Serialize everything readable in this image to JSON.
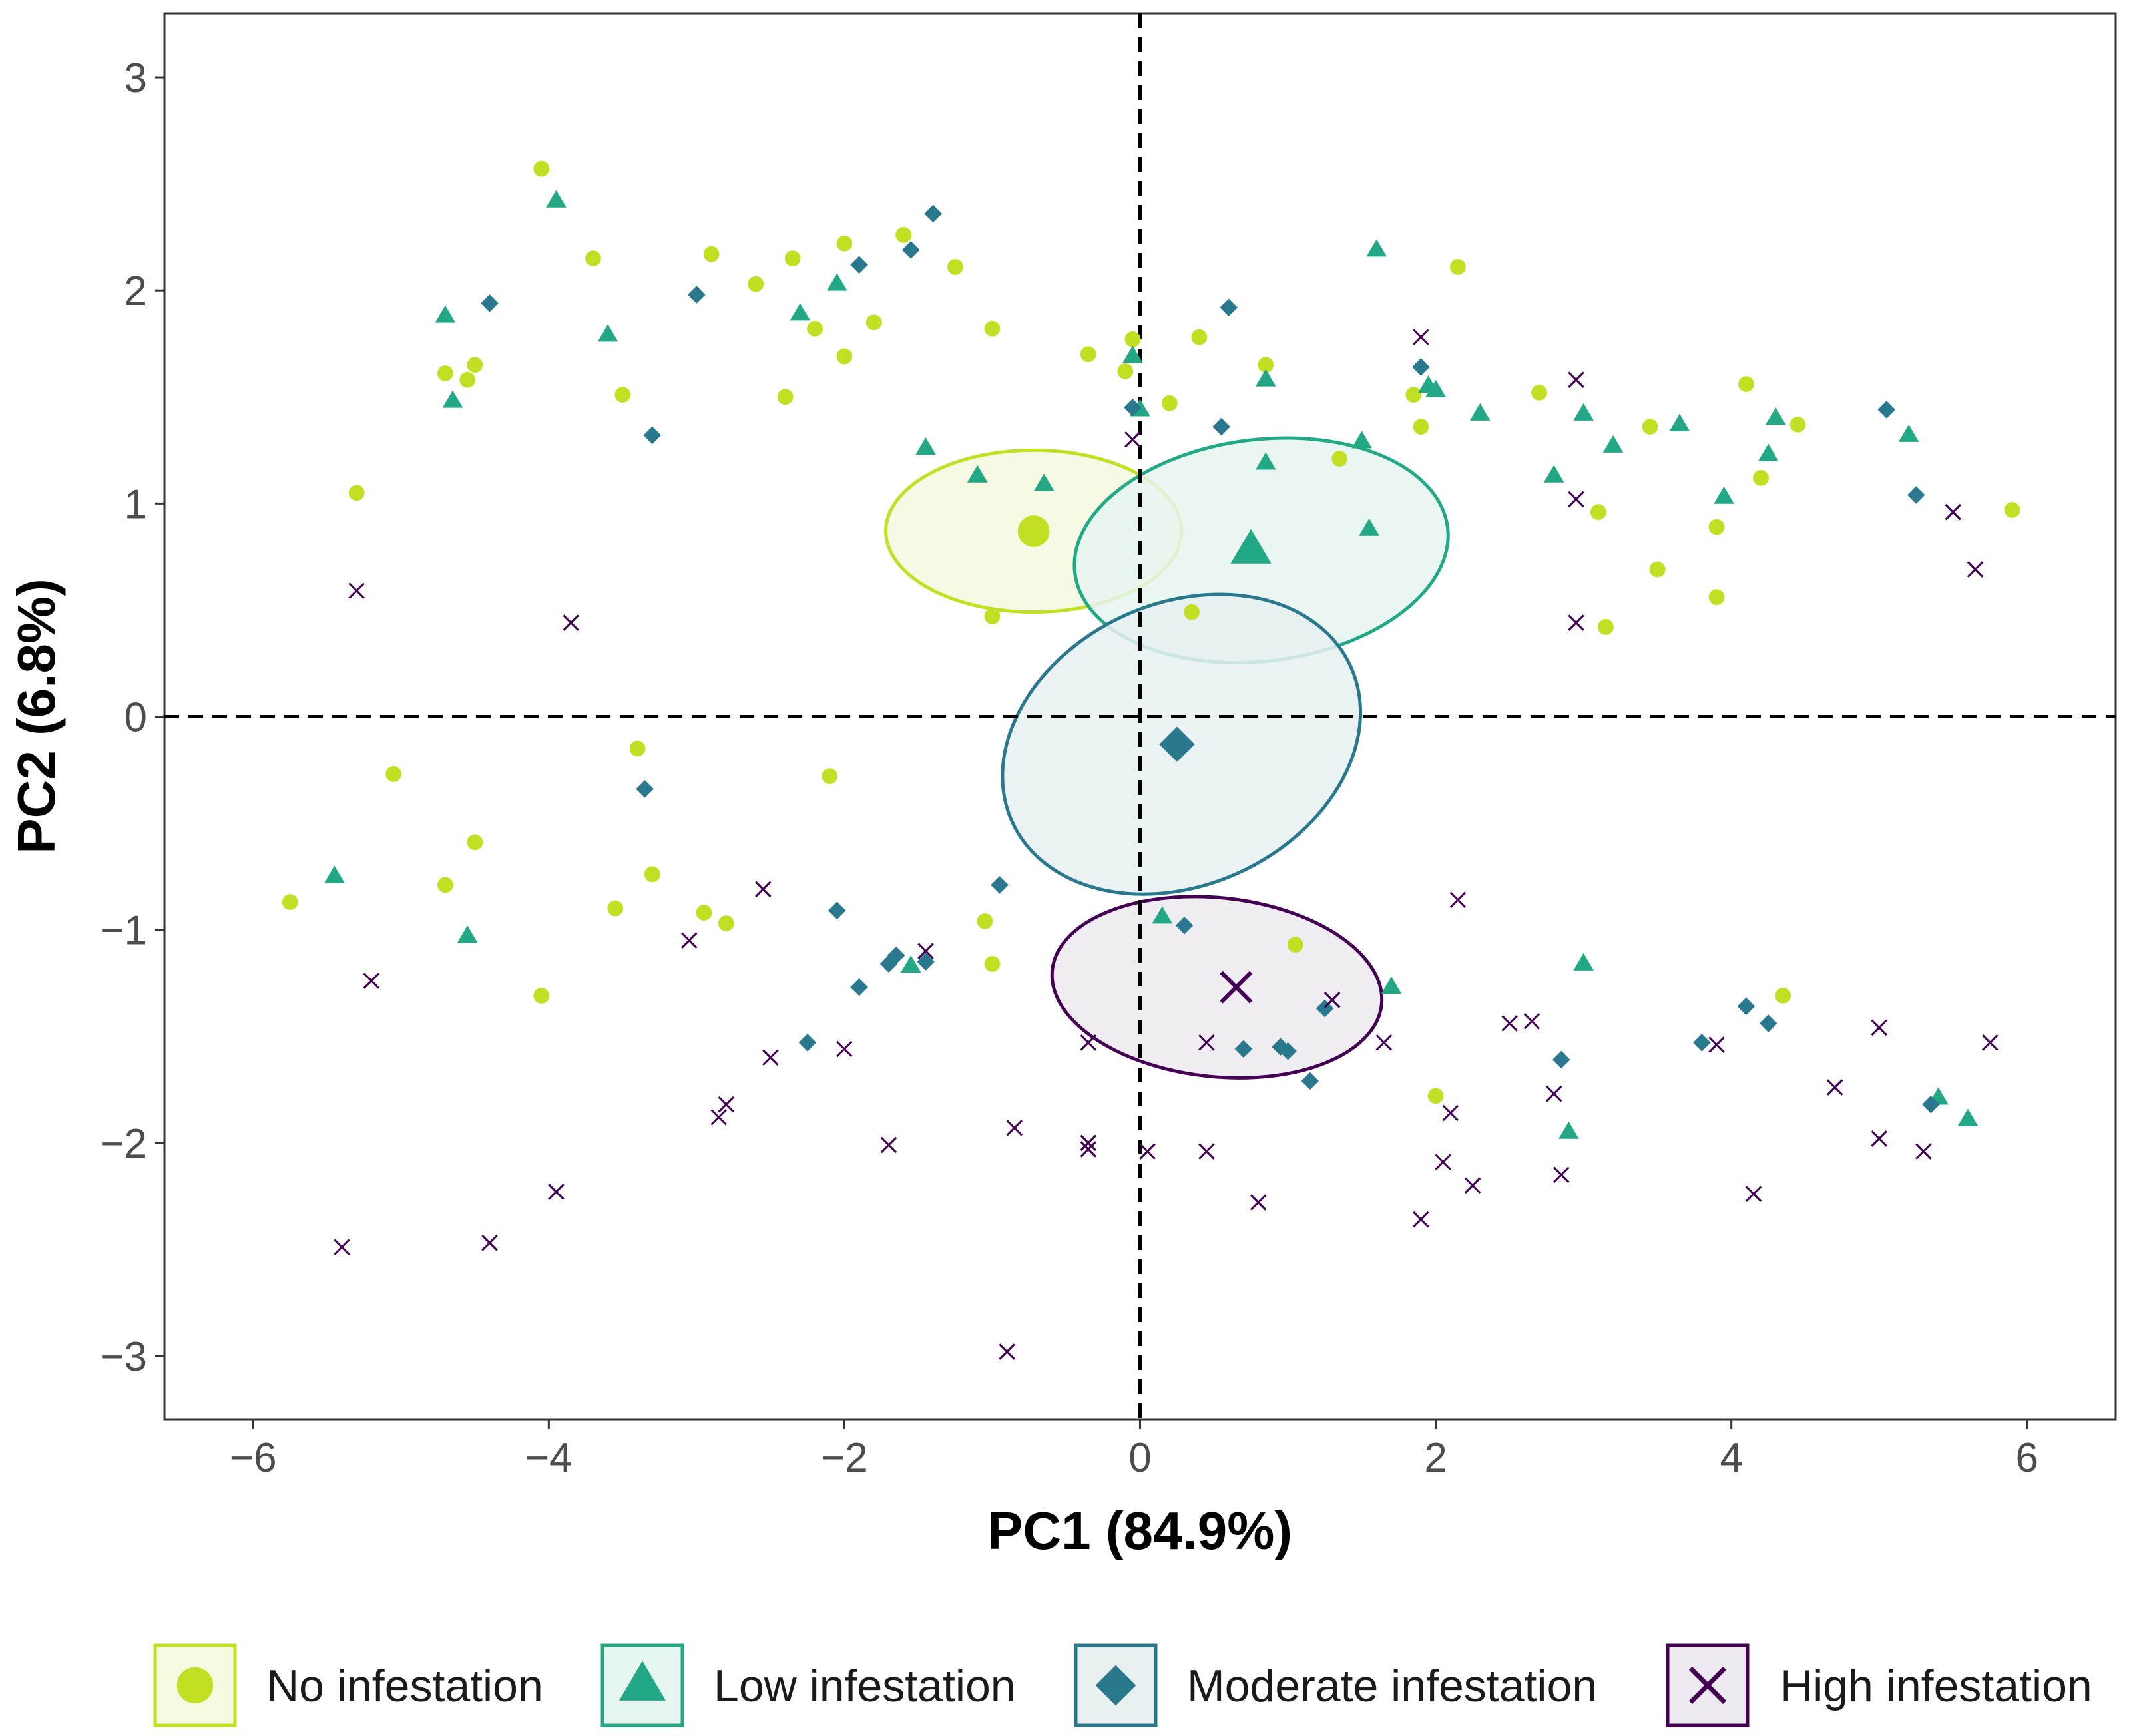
{
  "chart_data": {
    "type": "scatter",
    "xlabel": "PC1 (84.9%)",
    "ylabel": "PC2 (6.8%)",
    "xlim": [
      -6.6,
      6.6
    ],
    "ylim": [
      -3.3,
      3.3
    ],
    "xticks": [
      -6,
      -4,
      -2,
      0,
      2,
      4,
      6
    ],
    "yticks": [
      -3,
      -2,
      -1,
      0,
      1,
      2,
      3
    ],
    "xtick_labels": [
      "−6",
      "−4",
      "−2",
      "0",
      "2",
      "4",
      "6"
    ],
    "ytick_labels": [
      "−3",
      "−2",
      "−1",
      "0",
      "1",
      "2",
      "3"
    ],
    "reference_lines": {
      "x": 0,
      "y": 0
    },
    "series": [
      {
        "name": "No infestation",
        "shape": "circle",
        "color": "#c2df23",
        "fill": "#f5f9df",
        "centroid": {
          "x": -0.72,
          "y": 0.87
        },
        "ellipse": {
          "cx": -0.72,
          "cy": 0.87,
          "rx": 1.0,
          "ry": 0.38,
          "angle": 0
        },
        "points": [
          [
            -4.05,
            2.57
          ],
          [
            -3.7,
            2.15
          ],
          [
            -2.9,
            2.17
          ],
          [
            -2.6,
            2.03
          ],
          [
            -2.35,
            2.15
          ],
          [
            -2.0,
            2.22
          ],
          [
            -1.6,
            2.26
          ],
          [
            -1.25,
            2.11
          ],
          [
            -1.8,
            1.85
          ],
          [
            -2.2,
            1.82
          ],
          [
            -1.0,
            1.82
          ],
          [
            -2.0,
            1.69
          ],
          [
            -4.7,
            1.61
          ],
          [
            -4.55,
            1.58
          ],
          [
            -4.5,
            1.65
          ],
          [
            -3.5,
            1.51
          ],
          [
            -2.4,
            1.5
          ],
          [
            -0.35,
            1.7
          ],
          [
            -0.05,
            1.77
          ],
          [
            -0.1,
            1.62
          ],
          [
            0.4,
            1.78
          ],
          [
            0.85,
            1.65
          ],
          [
            0.2,
            1.47
          ],
          [
            1.85,
            1.51
          ],
          [
            1.9,
            1.36
          ],
          [
            2.15,
            2.11
          ],
          [
            2.7,
            1.52
          ],
          [
            4.1,
            1.56
          ],
          [
            4.45,
            1.37
          ],
          [
            3.45,
            1.36
          ],
          [
            4.2,
            1.12
          ],
          [
            5.9,
            0.97
          ],
          [
            3.1,
            0.96
          ],
          [
            3.9,
            0.89
          ],
          [
            3.5,
            0.69
          ],
          [
            3.9,
            0.56
          ],
          [
            3.15,
            0.42
          ],
          [
            1.35,
            1.21
          ],
          [
            0.35,
            0.49
          ],
          [
            -1.0,
            0.47
          ],
          [
            -5.3,
            1.05
          ],
          [
            -3.4,
            -0.15
          ],
          [
            -5.05,
            -0.27
          ],
          [
            -2.1,
            -0.28
          ],
          [
            -4.5,
            -0.59
          ],
          [
            -3.3,
            -0.74
          ],
          [
            -4.7,
            -0.79
          ],
          [
            -5.75,
            -0.87
          ],
          [
            -3.55,
            -0.9
          ],
          [
            -2.95,
            -0.92
          ],
          [
            -2.8,
            -0.97
          ],
          [
            -1.05,
            -0.96
          ],
          [
            -1.0,
            -1.16
          ],
          [
            -4.05,
            -1.31
          ],
          [
            1.05,
            -1.07
          ],
          [
            2.0,
            -1.78
          ],
          [
            4.35,
            -1.31
          ]
        ]
      },
      {
        "name": "Low infestation",
        "shape": "triangle",
        "color": "#22a884",
        "fill": "#e5f5ef",
        "centroid": {
          "x": 0.75,
          "y": 0.78
        },
        "ellipse": {
          "cx": 0.82,
          "cy": 0.78,
          "rx": 1.27,
          "ry": 0.52,
          "angle": 7
        },
        "points": [
          [
            -3.95,
            2.42
          ],
          [
            -4.7,
            1.88
          ],
          [
            -4.65,
            1.48
          ],
          [
            -3.6,
            1.79
          ],
          [
            -2.05,
            2.03
          ],
          [
            -2.3,
            1.89
          ],
          [
            -1.45,
            1.26
          ],
          [
            -1.1,
            1.13
          ],
          [
            -0.65,
            1.09
          ],
          [
            -0.05,
            1.69
          ],
          [
            0.0,
            1.44
          ],
          [
            1.6,
            2.19
          ],
          [
            0.85,
            1.58
          ],
          [
            1.95,
            1.55
          ],
          [
            2.0,
            1.53
          ],
          [
            2.3,
            1.42
          ],
          [
            3.0,
            1.42
          ],
          [
            3.65,
            1.37
          ],
          [
            4.3,
            1.4
          ],
          [
            5.2,
            1.32
          ],
          [
            3.2,
            1.27
          ],
          [
            4.25,
            1.23
          ],
          [
            1.5,
            1.29
          ],
          [
            0.85,
            1.19
          ],
          [
            2.8,
            1.13
          ],
          [
            3.95,
            1.03
          ],
          [
            1.55,
            0.88
          ],
          [
            -5.45,
            -0.75
          ],
          [
            -4.55,
            -1.03
          ],
          [
            -1.55,
            -1.17
          ],
          [
            0.15,
            -0.94
          ],
          [
            1.7,
            -1.27
          ],
          [
            3.0,
            -1.16
          ],
          [
            2.9,
            -1.95
          ],
          [
            5.4,
            -1.79
          ],
          [
            5.6,
            -1.89
          ]
        ]
      },
      {
        "name": "Moderate infestation",
        "shape": "diamond",
        "color": "#2a788e",
        "fill": "#e8f0f2",
        "centroid": {
          "x": 0.25,
          "y": -0.13
        },
        "ellipse": {
          "cx": 0.28,
          "cy": -0.13,
          "rx": 1.26,
          "ry": 0.66,
          "angle": 25
        },
        "points": [
          [
            -1.4,
            2.36
          ],
          [
            -1.55,
            2.19
          ],
          [
            -1.9,
            2.12
          ],
          [
            -3.0,
            1.98
          ],
          [
            -4.4,
            1.94
          ],
          [
            0.6,
            1.92
          ],
          [
            1.9,
            1.64
          ],
          [
            -3.3,
            1.32
          ],
          [
            -0.05,
            1.45
          ],
          [
            0.55,
            1.36
          ],
          [
            5.05,
            1.44
          ],
          [
            5.25,
            1.04
          ],
          [
            -3.35,
            -0.34
          ],
          [
            -0.95,
            -0.79
          ],
          [
            -2.05,
            -0.91
          ],
          [
            0.3,
            -0.98
          ],
          [
            -1.65,
            -1.12
          ],
          [
            -1.7,
            -1.16
          ],
          [
            -1.45,
            -1.15
          ],
          [
            -1.9,
            -1.27
          ],
          [
            1.25,
            -1.37
          ],
          [
            -2.25,
            -1.53
          ],
          [
            0.7,
            -1.56
          ],
          [
            0.95,
            -1.55
          ],
          [
            1.0,
            -1.57
          ],
          [
            1.15,
            -1.71
          ],
          [
            2.85,
            -1.61
          ],
          [
            3.8,
            -1.53
          ],
          [
            4.1,
            -1.36
          ],
          [
            4.25,
            -1.44
          ],
          [
            5.35,
            -1.82
          ]
        ]
      },
      {
        "name": "High infestation",
        "shape": "x",
        "color": "#440154",
        "fill": "#ece9f0",
        "centroid": {
          "x": 0.65,
          "y": -1.27
        },
        "ellipse": {
          "cx": 0.52,
          "cy": -1.27,
          "rx": 1.12,
          "ry": 0.42,
          "angle": -6
        },
        "points": [
          [
            1.9,
            1.78
          ],
          [
            -0.05,
            1.3
          ],
          [
            2.95,
            1.58
          ],
          [
            2.95,
            1.02
          ],
          [
            5.5,
            0.96
          ],
          [
            5.65,
            0.69
          ],
          [
            2.95,
            0.44
          ],
          [
            -5.3,
            0.59
          ],
          [
            -3.85,
            0.44
          ],
          [
            -2.55,
            -0.81
          ],
          [
            -3.05,
            -1.05
          ],
          [
            -5.2,
            -1.24
          ],
          [
            -1.45,
            -1.1
          ],
          [
            -2.0,
            -1.56
          ],
          [
            -2.5,
            -1.6
          ],
          [
            -0.35,
            -1.53
          ],
          [
            0.45,
            -1.53
          ],
          [
            1.3,
            -1.33
          ],
          [
            1.65,
            -1.53
          ],
          [
            2.15,
            -0.86
          ],
          [
            2.5,
            -1.44
          ],
          [
            2.65,
            -1.43
          ],
          [
            2.8,
            -1.77
          ],
          [
            2.85,
            -2.15
          ],
          [
            2.1,
            -1.86
          ],
          [
            2.05,
            -2.09
          ],
          [
            2.25,
            -2.2
          ],
          [
            1.9,
            -2.36
          ],
          [
            0.8,
            -2.28
          ],
          [
            0.45,
            -2.04
          ],
          [
            0.05,
            -2.04
          ],
          [
            -0.35,
            -2.0
          ],
          [
            -0.35,
            -2.03
          ],
          [
            -0.85,
            -1.93
          ],
          [
            -1.7,
            -2.01
          ],
          [
            -2.85,
            -1.88
          ],
          [
            -2.8,
            -1.82
          ],
          [
            -3.95,
            -2.23
          ],
          [
            -4.4,
            -2.47
          ],
          [
            -5.4,
            -2.49
          ],
          [
            -0.9,
            -2.98
          ],
          [
            3.9,
            -1.54
          ],
          [
            4.15,
            -2.24
          ],
          [
            4.7,
            -1.74
          ],
          [
            5.0,
            -1.46
          ],
          [
            5.0,
            -1.98
          ],
          [
            5.3,
            -2.04
          ],
          [
            5.75,
            -1.53
          ]
        ]
      }
    ]
  }
}
